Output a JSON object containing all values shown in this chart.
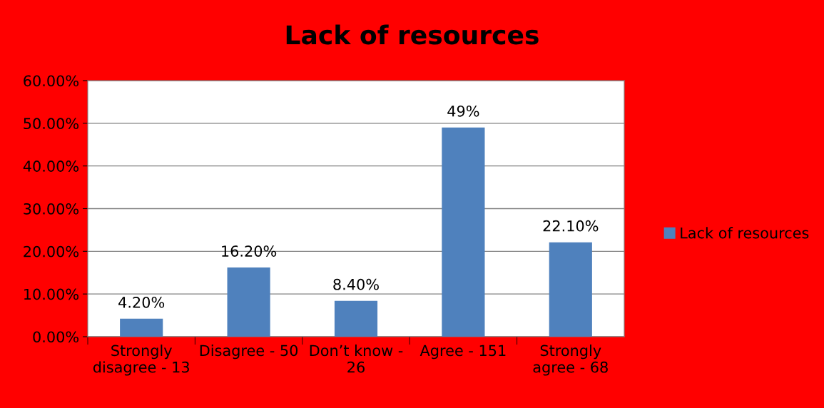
{
  "chart_data": {
    "type": "bar",
    "title": "Lack of resources",
    "categories": [
      "Strongly\ndisagree - 13",
      "Disagree - 50",
      "Don’t know -\n26",
      "Agree - 151",
      "Strongly\nagree - 68"
    ],
    "series": [
      {
        "name": "Lack of resources",
        "color": "#4f81bd",
        "values": [
          4.2,
          16.2,
          8.4,
          49,
          22.1
        ],
        "value_labels": [
          "4.20%",
          "16.20%",
          "8.40%",
          "49%",
          "22.10%"
        ]
      }
    ],
    "ylim": [
      0,
      60
    ],
    "yticks": [
      {
        "value": 0,
        "label": "0.00%"
      },
      {
        "value": 10,
        "label": "10.00%"
      },
      {
        "value": 20,
        "label": "20.00%"
      },
      {
        "value": 30,
        "label": "30.00%"
      },
      {
        "value": 40,
        "label": "40.00%"
      },
      {
        "value": 50,
        "label": "50.00%"
      },
      {
        "value": 60,
        "label": "60.00%"
      }
    ],
    "grid": "y",
    "legend": "right"
  }
}
